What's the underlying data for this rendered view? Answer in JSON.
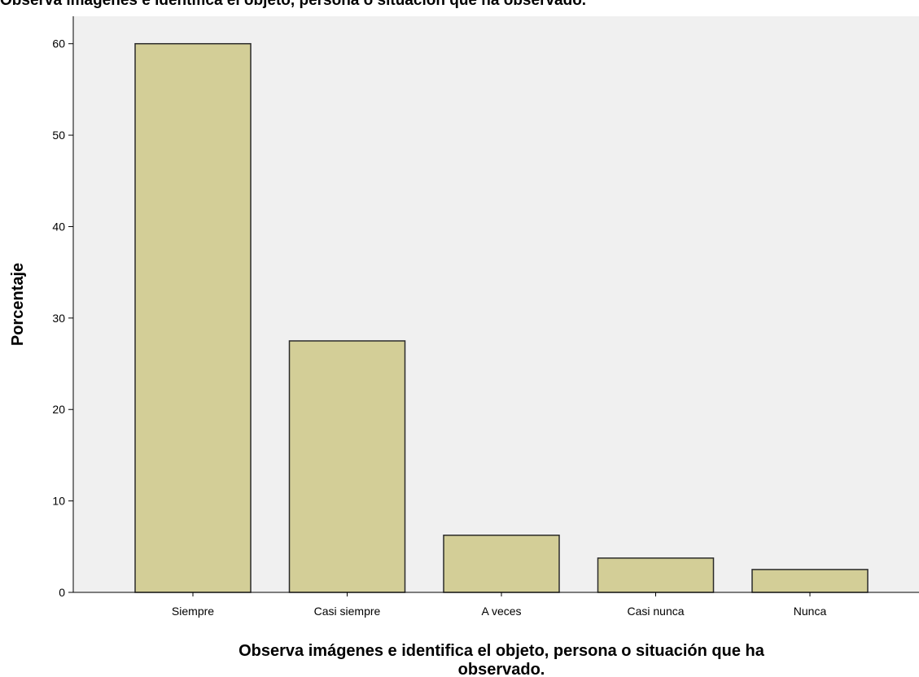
{
  "chart_data": {
    "type": "bar",
    "title": "Observa imágenes e identifica el objeto, persona o situación que ha observado.",
    "xlabel_lines": [
      "Observa imágenes e identifica el objeto, persona o situación que ha",
      "observado."
    ],
    "ylabel": "Porcentaje",
    "categories": [
      "Siempre",
      "Casi siempre",
      "A veces",
      "Casi nunca",
      "Nunca"
    ],
    "values": [
      60.0,
      27.5,
      6.25,
      3.75,
      2.5
    ],
    "ylim": [
      0,
      63
    ],
    "yticks": [
      0,
      10,
      20,
      30,
      40,
      50,
      60
    ],
    "grid": false,
    "legend": "none",
    "colors": {
      "plot_background": "#f0f0f0",
      "bar_fill": "#d3ce97",
      "bar_stroke": "#2b2b2b",
      "axis": "#000000"
    }
  }
}
